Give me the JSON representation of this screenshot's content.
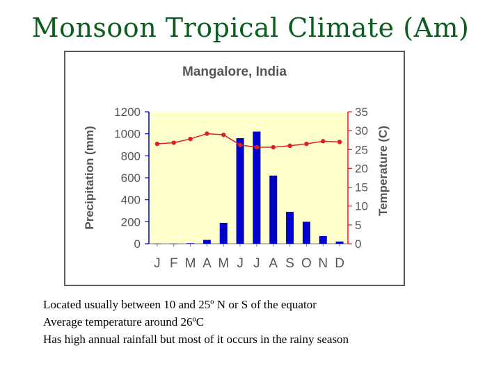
{
  "slide": {
    "title": "Monsoon Tropical Climate (Am)",
    "bullets": [
      "Located usually between 10 and 25º N or S of the equator",
      "Average temperature around 26ºC",
      "Has high annual rainfall but most of it occurs in the rainy season"
    ]
  },
  "chart_data": {
    "type": "bar",
    "title": "Mangalore, India",
    "categories": [
      "J",
      "F",
      "M",
      "A",
      "M",
      "J",
      "J",
      "A",
      "S",
      "O",
      "N",
      "D"
    ],
    "series": [
      {
        "values": [
          1,
          1,
          5,
          35,
          190,
          960,
          1020,
          620,
          290,
          200,
          70,
          20
        ]
      },
      {
        "type": "line",
        "axis": "right",
        "values": [
          26.5,
          26.8,
          27.8,
          29.2,
          28.9,
          26.2,
          25.6,
          25.6,
          26.0,
          26.5,
          27.2,
          27.0
        ]
      }
    ],
    "ylabel": "Precipitation (mm)",
    "y2label": "Temperature (C)",
    "ylim": [
      0,
      1200
    ],
    "y2lim": [
      0,
      35
    ],
    "yticks": [
      "0",
      "200",
      "400",
      "600",
      "800",
      "1000",
      "1200"
    ],
    "y2ticks": [
      "0",
      "5",
      "10",
      "15",
      "20",
      "25",
      "30",
      "35"
    ],
    "colors": {
      "plot_bg": "#ffffcc",
      "bars": "#0000cc",
      "line": "#e02020",
      "left_axis": "#0000cc",
      "right_axis": "#e02020"
    }
  }
}
